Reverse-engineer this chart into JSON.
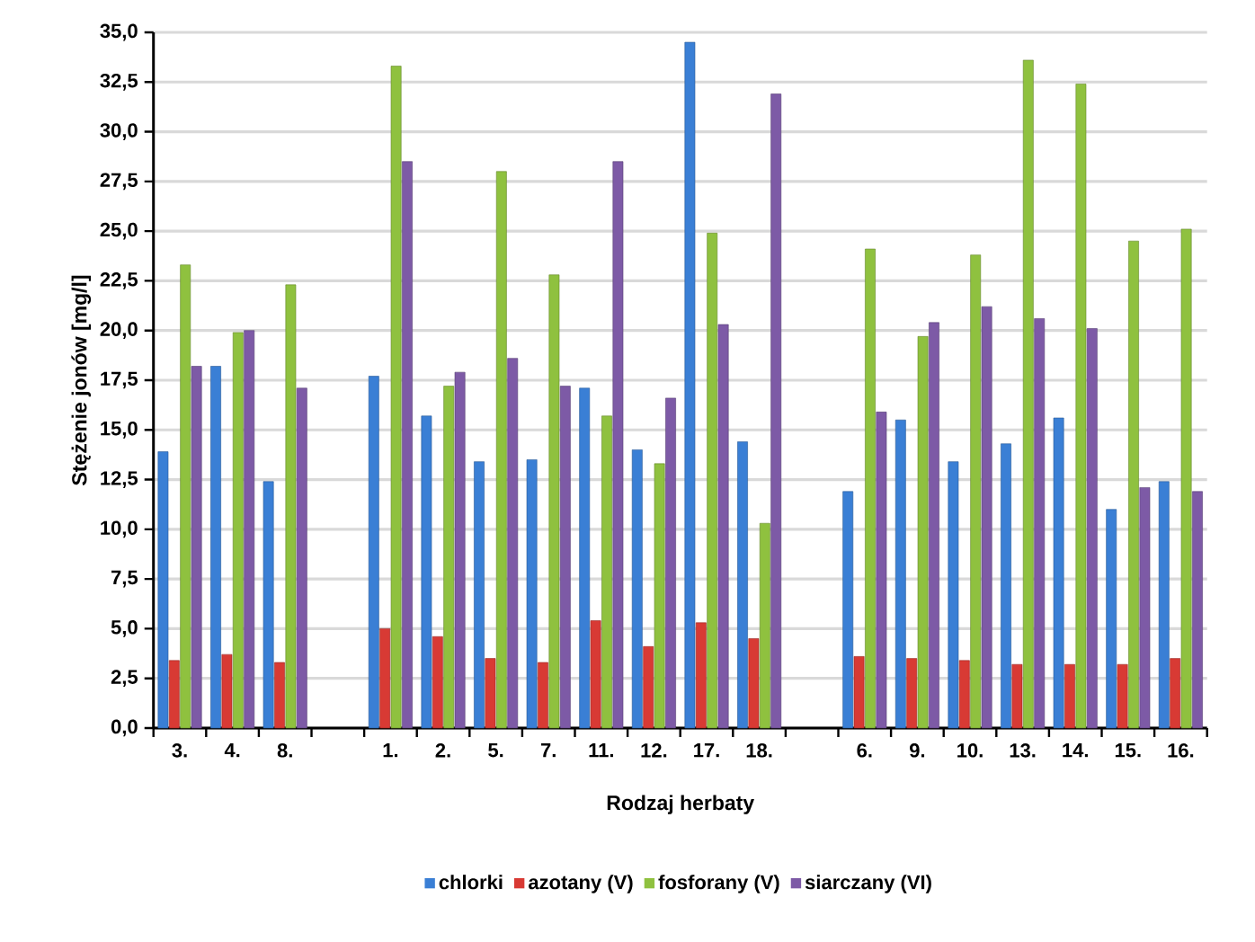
{
  "chart_data": {
    "type": "bar",
    "xlabel": "Rodzaj herbaty",
    "ylabel": "Stężenie jonów [mg/l]",
    "categories": [
      "3.",
      "4.",
      "8.",
      null,
      "1.",
      "2.",
      "5.",
      "7.",
      "11.",
      "12.",
      "17.",
      "18.",
      null,
      "6.",
      "9.",
      "10.",
      "13.",
      "14.",
      "15.",
      "16."
    ],
    "series": [
      {
        "name": "chlorki",
        "color": "#3a7fd5",
        "values": [
          13.9,
          18.2,
          12.4,
          null,
          17.7,
          15.7,
          13.4,
          13.5,
          17.1,
          14.0,
          34.5,
          14.4,
          null,
          11.9,
          15.5,
          13.4,
          14.3,
          15.6,
          11.0,
          12.4
        ]
      },
      {
        "name": "azotany (V)",
        "color": "#d83a34",
        "values": [
          3.4,
          3.7,
          3.3,
          null,
          5.0,
          4.6,
          3.5,
          3.3,
          5.4,
          4.1,
          5.3,
          4.5,
          null,
          3.6,
          3.5,
          3.4,
          3.2,
          3.2,
          3.2,
          3.5
        ]
      },
      {
        "name": "fosforany (V)",
        "color": "#8fc13f",
        "values": [
          23.3,
          19.9,
          22.3,
          null,
          33.3,
          17.2,
          28.0,
          22.8,
          15.7,
          13.3,
          24.9,
          10.3,
          null,
          24.1,
          19.7,
          23.8,
          33.6,
          32.4,
          24.5,
          25.1
        ]
      },
      {
        "name": "siarczany (VI)",
        "color": "#7d5aa6",
        "values": [
          18.2,
          20.0,
          17.1,
          null,
          28.5,
          17.9,
          18.6,
          17.2,
          28.5,
          16.6,
          20.3,
          31.9,
          null,
          15.9,
          20.4,
          21.2,
          20.6,
          20.1,
          12.1,
          11.9
        ]
      }
    ],
    "ylim": [
      0,
      35
    ],
    "yticks": [
      {
        "value": 0,
        "label": "0,0"
      },
      {
        "value": 2.5,
        "label": "2,5"
      },
      {
        "value": 5,
        "label": "5,0"
      },
      {
        "value": 7.5,
        "label": "7,5"
      },
      {
        "value": 10,
        "label": "10,0"
      },
      {
        "value": 12.5,
        "label": "12,5"
      },
      {
        "value": 15,
        "label": "15,0"
      },
      {
        "value": 17.5,
        "label": "17,5"
      },
      {
        "value": 20,
        "label": "20,0"
      },
      {
        "value": 22.5,
        "label": "22,5"
      },
      {
        "value": 25,
        "label": "25,0"
      },
      {
        "value": 27.5,
        "label": "27,5"
      },
      {
        "value": 30,
        "label": "30,0"
      },
      {
        "value": 32.5,
        "label": "32,5"
      },
      {
        "value": 35,
        "label": "35,0"
      }
    ],
    "grid": "y",
    "legend": "bottom"
  }
}
